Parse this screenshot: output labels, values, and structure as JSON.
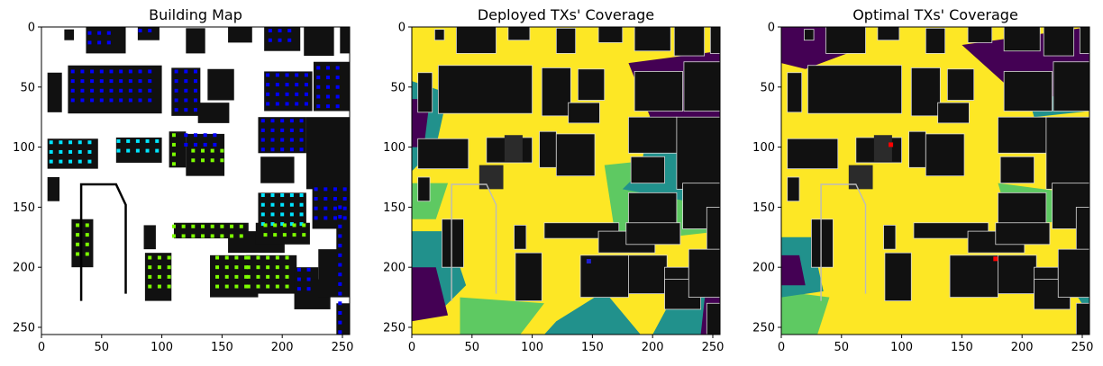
{
  "chart_data": [
    {
      "type": "heatmap",
      "title": "Building Map",
      "xlim": [
        0,
        256
      ],
      "ylim": [
        256,
        0
      ],
      "x_ticks": [
        0,
        50,
        100,
        150,
        200,
        250
      ],
      "y_ticks": [
        0,
        50,
        100,
        150,
        200,
        250
      ],
      "legend": "none",
      "grid": false
    },
    {
      "type": "heatmap",
      "title": "Deployed TXs' Coverage",
      "xlim": [
        0,
        256
      ],
      "ylim": [
        256,
        0
      ],
      "x_ticks": [
        0,
        50,
        100,
        150,
        200,
        250
      ],
      "y_ticks": [
        0,
        50,
        100,
        150,
        200,
        250
      ],
      "legend": "none",
      "grid": false,
      "tx_points": [
        {
          "x": 147,
          "y": 195
        }
      ]
    },
    {
      "type": "heatmap",
      "title": "Optimal TXs' Coverage",
      "xlim": [
        0,
        256
      ],
      "ylim": [
        256,
        0
      ],
      "x_ticks": [
        0,
        50,
        100,
        150,
        200,
        250
      ],
      "y_ticks": [
        0,
        50,
        100,
        150,
        200,
        250
      ],
      "legend": "none",
      "grid": false,
      "tx_points": [
        {
          "x": 91,
          "y": 98
        },
        {
          "x": 178,
          "y": 193
        }
      ]
    }
  ],
  "colors": {
    "building": "#111111",
    "building_gray": "#2b2b2b",
    "empty": "#ffffff",
    "coverage_high": "#fde725",
    "coverage_mid": "#5ec962",
    "coverage_low": "#21918c",
    "coverage_none": "#440154",
    "marker_blue": "#0000ff",
    "marker_cyan": "#00e5ff",
    "marker_green": "#7cfc00",
    "tx_optimal": "#ff0000",
    "tx_deployed": "#1f1fd0"
  }
}
